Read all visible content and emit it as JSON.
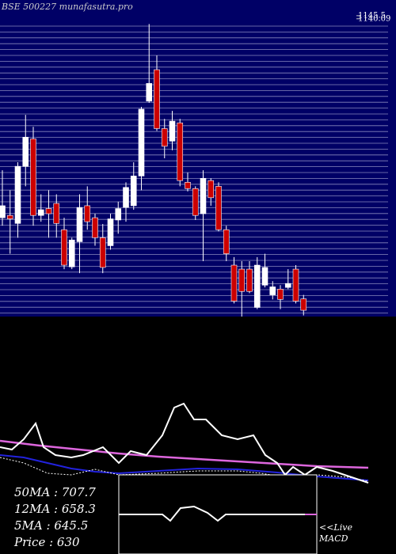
{
  "chart_data": {
    "type": "candlestick",
    "title": "BSE 500227 munafasutra.pro",
    "ylim": [
      619,
      1173
    ],
    "yticks": [
      {
        "value": 1145.5,
        "label": "1145.5"
      },
      {
        "value": 1140.09,
        "label": "1140.09"
      }
    ],
    "up_color": "#ffffff",
    "down_color": "#cc0000",
    "candles": [
      [
        792,
        875,
        778,
        813
      ],
      [
        796,
        840,
        729,
        790
      ],
      [
        782,
        889,
        757,
        882
      ],
      [
        882,
        972,
        847,
        933
      ],
      [
        930,
        951,
        778,
        796
      ],
      [
        796,
        833,
        785,
        806
      ],
      [
        808,
        840,
        757,
        799
      ],
      [
        817,
        833,
        757,
        782
      ],
      [
        771,
        792,
        702,
        709
      ],
      [
        706,
        757,
        702,
        753
      ],
      [
        750,
        833,
        695,
        810
      ],
      [
        813,
        847,
        771,
        785
      ],
      [
        792,
        799,
        743,
        757
      ],
      [
        757,
        781,
        695,
        705
      ],
      [
        743,
        799,
        736,
        790
      ],
      [
        788,
        820,
        764,
        808
      ],
      [
        810,
        854,
        785,
        845
      ],
      [
        813,
        889,
        806,
        865
      ],
      [
        865,
        986,
        840,
        982
      ],
      [
        996,
        1131,
        993,
        1027
      ],
      [
        1051,
        1076,
        944,
        948
      ],
      [
        948,
        965,
        896,
        917
      ],
      [
        926,
        979,
        910,
        961
      ],
      [
        958,
        965,
        847,
        857
      ],
      [
        854,
        871,
        838,
        843
      ],
      [
        843,
        847,
        788,
        796
      ],
      [
        799,
        875,
        716,
        861
      ],
      [
        857,
        861,
        813,
        827
      ],
      [
        847,
        854,
        768,
        771
      ],
      [
        771,
        778,
        716,
        729
      ],
      [
        709,
        723,
        642,
        646
      ],
      [
        702,
        716,
        619,
        663
      ],
      [
        702,
        716,
        660,
        663
      ],
      [
        635,
        723,
        632,
        709
      ],
      [
        674,
        729,
        670,
        705
      ],
      [
        657,
        681,
        649,
        671
      ],
      [
        667,
        674,
        632,
        649
      ],
      [
        670,
        702,
        667,
        677
      ],
      [
        702,
        709,
        642,
        646
      ],
      [
        650,
        657,
        621,
        630
      ]
    ],
    "stats": [
      "50MA : 707.7",
      "12MA : 658.3",
      "5MA : 645.5",
      "Price  : 630"
    ],
    "macd_label": [
      "<<Live",
      "MACD"
    ]
  }
}
